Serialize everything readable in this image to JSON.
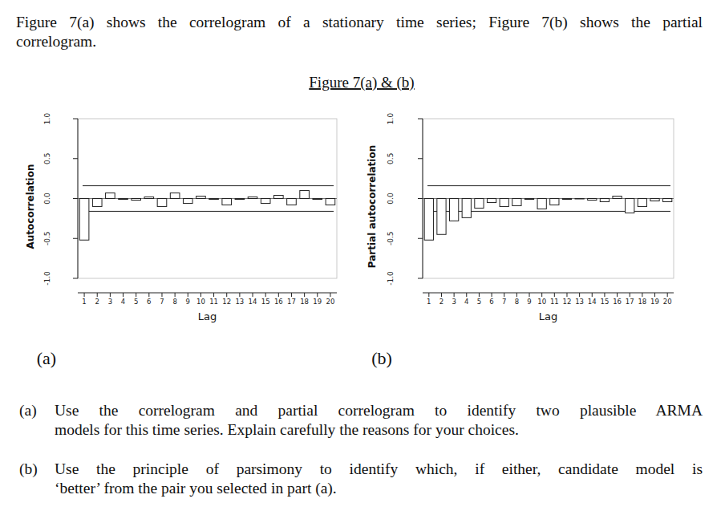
{
  "intro": [
    "Figure 7(a) shows the correlogram of a stationary time series; Figure 7(b) shows the partial",
    "correlogram."
  ],
  "figure_title": "Figure 7(a) & (b)",
  "panel_labels": [
    "(a)",
    "(b)"
  ],
  "chart_data": [
    {
      "type": "bar",
      "x_label": "Lag",
      "y_label": "Autocorrelation",
      "x": [
        1,
        2,
        3,
        4,
        5,
        6,
        7,
        8,
        9,
        10,
        11,
        12,
        13,
        14,
        15,
        16,
        17,
        18,
        19,
        20
      ],
      "values": [
        -0.52,
        -0.1,
        0.07,
        -0.01,
        -0.02,
        0.02,
        -0.1,
        0.07,
        -0.06,
        0.03,
        -0.01,
        -0.08,
        -0.01,
        0.02,
        -0.06,
        0.04,
        -0.08,
        0.1,
        -0.01,
        -0.08
      ],
      "color": "#ffffff",
      "confidence_limits": [
        -0.16,
        0.16
      ],
      "xlim": [
        0.5,
        20.5
      ],
      "xticks": [
        1,
        2,
        3,
        4,
        5,
        6,
        7,
        8,
        9,
        10,
        11,
        12,
        13,
        14,
        15,
        16,
        17,
        18,
        19,
        20
      ],
      "ylim": [
        -1,
        1
      ],
      "yticks": [
        {
          "value": -1,
          "label": "-1.0"
        },
        {
          "value": -0.5,
          "label": "-0.5"
        },
        {
          "value": 0,
          "label": "0.0"
        },
        {
          "value": 0.5,
          "label": "0.5"
        },
        {
          "value": 1,
          "label": "1.0"
        }
      ]
    },
    {
      "type": "bar",
      "x_label": "Lag",
      "y_label": "Partial autocorrelation",
      "x": [
        1,
        2,
        3,
        4,
        5,
        6,
        7,
        8,
        9,
        10,
        11,
        12,
        13,
        14,
        15,
        16,
        17,
        18,
        19,
        20
      ],
      "values": [
        -0.52,
        -0.45,
        -0.28,
        -0.24,
        -0.12,
        -0.05,
        -0.1,
        -0.09,
        -0.01,
        -0.13,
        -0.08,
        -0.01,
        0.0,
        -0.02,
        -0.04,
        0.03,
        -0.18,
        -0.1,
        -0.03,
        -0.04
      ],
      "color": "#ffffff",
      "confidence_limits": [
        -0.16,
        0.16
      ],
      "xlim": [
        0.5,
        20.5
      ],
      "xticks": [
        1,
        2,
        3,
        4,
        5,
        6,
        7,
        8,
        9,
        10,
        11,
        12,
        13,
        14,
        15,
        16,
        17,
        18,
        19,
        20
      ],
      "ylim": [
        -1,
        1
      ],
      "yticks": [
        {
          "value": -1,
          "label": "-1.0"
        },
        {
          "value": -0.5,
          "label": "-0.5"
        },
        {
          "value": 0,
          "label": "0.0"
        },
        {
          "value": 0.5,
          "label": "0.5"
        },
        {
          "value": 1,
          "label": "1.0"
        }
      ]
    }
  ],
  "questions": [
    {
      "label": "(a)",
      "lines": [
        "Use the correlogram and partial correlogram to identify two plausible ARMA",
        "models for this time series. Explain carefully the reasons for your choices."
      ]
    },
    {
      "label": "(b)",
      "lines": [
        "Use the principle of parsimony to identify which, if either, candidate model is",
        "‘better’ from the pair you selected in part (a)."
      ]
    }
  ]
}
